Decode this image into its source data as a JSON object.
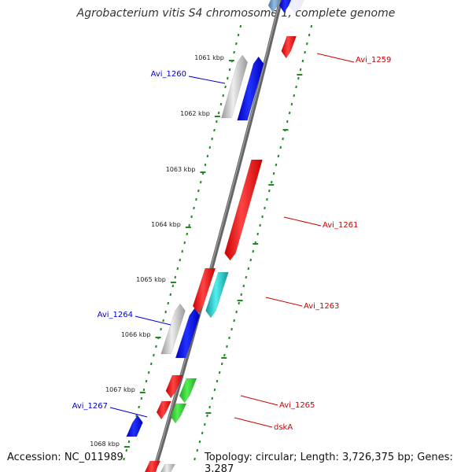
{
  "title": "Agrobacterium vitis S4 chromosome 1, complete genome",
  "footer": {
    "accession": "Accession: NC_011989",
    "info": "Topology: circular; Length: 3,726,375 bp; Genes: 3,287"
  },
  "colors": {
    "forward_label": "#cc0000",
    "reverse_label": "#0000cc",
    "cds_forward": "#ff0000",
    "cds_reverse": "#0000ee",
    "rna_gray": "#bbbbbb",
    "cyan": "#22cccc",
    "green": "#33cc33",
    "dots": "#228822",
    "backbone": "#777777"
  },
  "ticks": [
    {
      "label": "1061 kbp"
    },
    {
      "label": "1062 kbp"
    },
    {
      "label": "1063 kbp"
    },
    {
      "label": "1064 kbp"
    },
    {
      "label": "1065 kbp"
    },
    {
      "label": "1066 kbp"
    },
    {
      "label": "1067 kbp"
    },
    {
      "label": "1068 kbp"
    }
  ],
  "gene_labels": [
    {
      "name": "Avi_1259",
      "strand": "forward"
    },
    {
      "name": "Avi_1260",
      "strand": "reverse"
    },
    {
      "name": "Avi_1261",
      "strand": "forward"
    },
    {
      "name": "Avi_1263",
      "strand": "forward"
    },
    {
      "name": "Avi_1264",
      "strand": "reverse"
    },
    {
      "name": "Avi_1265",
      "strand": "forward"
    },
    {
      "name": "Avi_1267",
      "strand": "reverse"
    },
    {
      "name": "dskA",
      "strand": "forward"
    }
  ]
}
